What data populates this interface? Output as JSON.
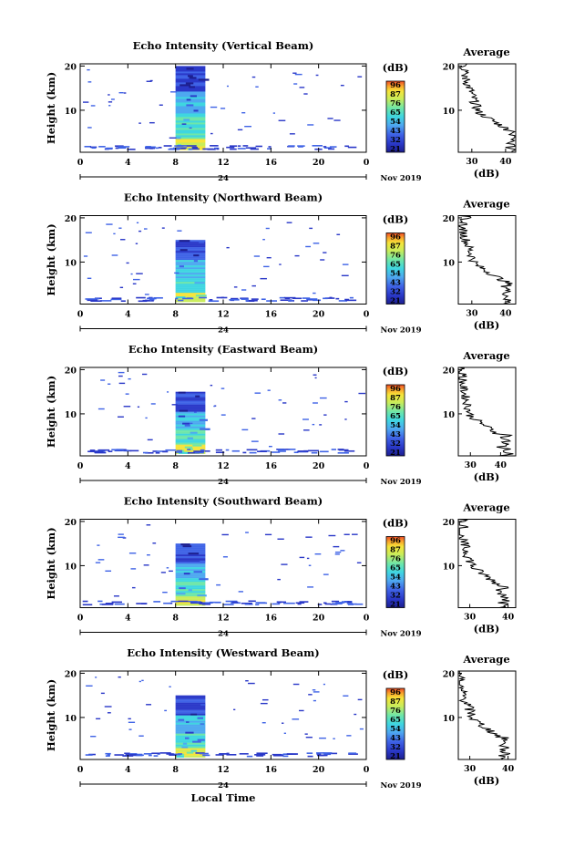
{
  "chart_data": {
    "type": "heatmap",
    "panels": [
      {
        "title": "Echo Intensity (Vertical Beam)",
        "profile_x": [
          28,
          41,
          32,
          44
        ],
        "profile_xlim": [
          26,
          43
        ]
      },
      {
        "title": "Echo Intensity (Northward Beam)",
        "profile_x": [
          27,
          40,
          31,
          41
        ],
        "profile_xlim": [
          26,
          43
        ]
      },
      {
        "title": "Echo Intensity (Eastward Beam)",
        "profile_x": [
          27,
          39,
          30,
          44
        ],
        "profile_xlim": [
          26,
          45
        ]
      },
      {
        "title": "Echo Intensity (Southward Beam)",
        "profile_x": [
          27,
          38,
          31,
          40
        ],
        "profile_xlim": [
          27,
          42
        ]
      },
      {
        "title": "Echo Intensity (Westward Beam)",
        "profile_x": [
          27,
          38,
          31,
          40
        ],
        "profile_xlim": [
          27,
          42
        ]
      }
    ],
    "ylabel": "Height (km)",
    "xlabel": "Local Time",
    "x_ticks": [
      "0",
      "4",
      "8",
      "12",
      "16",
      "20",
      "0"
    ],
    "x_ticks_num": [
      0,
      4,
      8,
      12,
      16,
      20,
      24
    ],
    "xlim": [
      0,
      24
    ],
    "y_ticks": [
      "20",
      "10"
    ],
    "y_ticks_num": [
      20,
      10
    ],
    "ylim": [
      0.5,
      20.5
    ],
    "day": "24",
    "month_label": "Nov 2019",
    "colorbar_unit": "(dB)",
    "colorbar_ticks": [
      "96",
      "87",
      "76",
      "65",
      "54",
      "43",
      "32",
      "21"
    ],
    "colorbar_ticks_num": [
      96,
      87,
      76,
      65,
      54,
      43,
      32,
      21
    ],
    "color_range": [
      21,
      96
    ],
    "active_period": [
      8,
      10.5
    ],
    "profile_title": "Average",
    "profile_xlabel": "(dB)",
    "profile_ticks": [
      "30",
      "40"
    ],
    "profile_ticks_num": [
      30,
      40
    ],
    "colors": {
      "scale": [
        "#1d1e8e",
        "#2a38c8",
        "#3f63e6",
        "#4ea8f0",
        "#3fd6e0",
        "#6fe6a8",
        "#c9ec5a",
        "#f6e43a",
        "#f9a52c",
        "#ef4a25"
      ]
    }
  }
}
